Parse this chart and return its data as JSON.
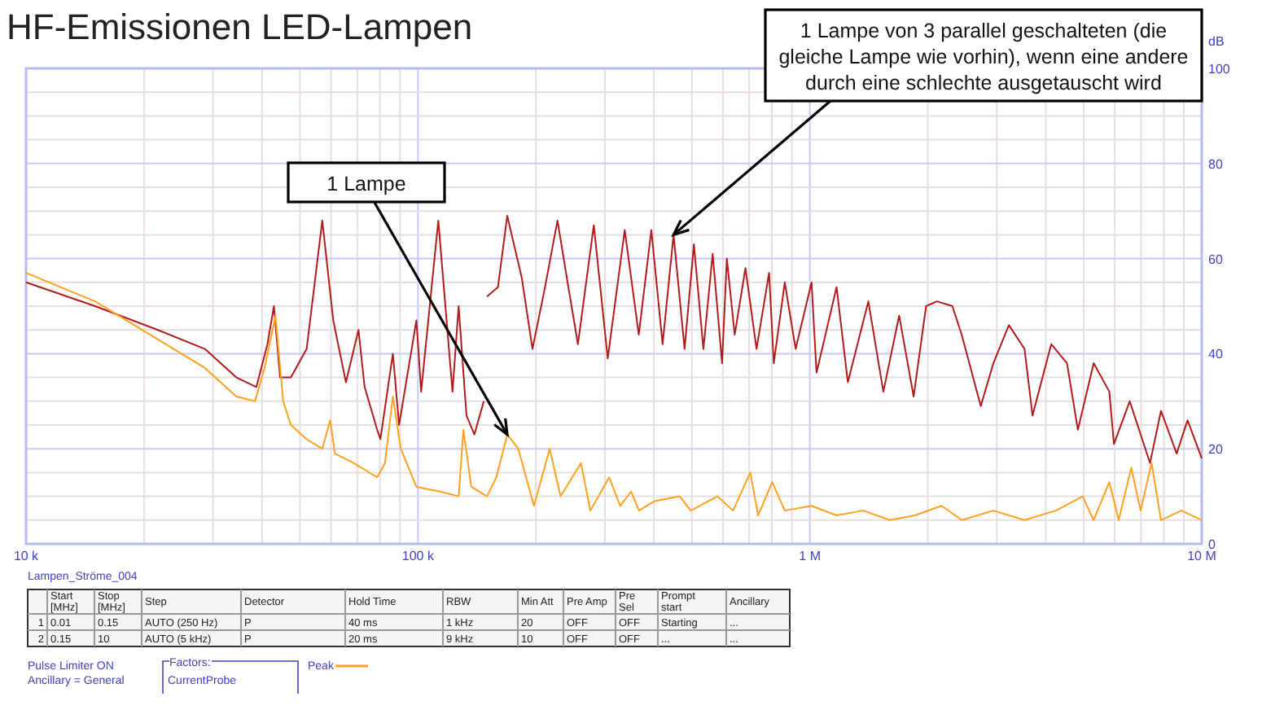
{
  "chart_data": {
    "type": "line",
    "title": "HF-Emissionen LED-Lampen",
    "ylabel": "dB",
    "xlim": [
      10000,
      10000000
    ],
    "log": "x",
    "xticks": [
      {
        "value": 10000,
        "label": "10 k"
      },
      {
        "value": 20000,
        "label": null
      },
      {
        "value": 30000,
        "label": null
      },
      {
        "value": 40000,
        "label": null
      },
      {
        "value": 50000,
        "label": null
      },
      {
        "value": 60000,
        "label": null
      },
      {
        "value": 70000,
        "label": null
      },
      {
        "value": 80000,
        "label": null
      },
      {
        "value": 90000,
        "label": null
      },
      {
        "value": 100000,
        "label": "100 k"
      },
      {
        "value": 200000,
        "label": null
      },
      {
        "value": 300000,
        "label": null
      },
      {
        "value": 400000,
        "label": null
      },
      {
        "value": 500000,
        "label": null
      },
      {
        "value": 600000,
        "label": null
      },
      {
        "value": 700000,
        "label": null
      },
      {
        "value": 800000,
        "label": null
      },
      {
        "value": 900000,
        "label": null
      },
      {
        "value": 1000000,
        "label": "1 M"
      },
      {
        "value": 2000000,
        "label": null
      },
      {
        "value": 3000000,
        "label": null
      },
      {
        "value": 4000000,
        "label": null
      },
      {
        "value": 5000000,
        "label": null
      },
      {
        "value": 6000000,
        "label": null
      },
      {
        "value": 7000000,
        "label": null
      },
      {
        "value": 8000000,
        "label": null
      },
      {
        "value": 9000000,
        "label": null
      },
      {
        "value": 10000000,
        "label": "10 M"
      }
    ],
    "ylim": [
      0,
      100
    ],
    "yticks": [
      0,
      {
        "value": 5,
        "label": null
      },
      {
        "value": 10,
        "label": null
      },
      {
        "value": 15,
        "label": null
      },
      20,
      {
        "value": 25,
        "label": null
      },
      {
        "value": 30,
        "label": null
      },
      {
        "value": 35,
        "label": null
      },
      40,
      {
        "value": 45,
        "label": null
      },
      {
        "value": 50,
        "label": null
      },
      {
        "value": 55,
        "label": null
      },
      60,
      {
        "value": 65,
        "label": null
      },
      {
        "value": 70,
        "label": null
      },
      {
        "value": 75,
        "label": null
      },
      80,
      {
        "value": 85,
        "label": null
      },
      {
        "value": 90,
        "label": null
      },
      {
        "value": 95,
        "label": null
      },
      100
    ],
    "grid": true,
    "legend": "bottom",
    "marker": "none",
    "line_style": "solid",
    "series": [
      {
        "color": "#b01c1c",
        "x": [
          10000,
          15000,
          21700,
          28600,
          34400,
          38700,
          41300,
          42900,
          44500,
          47400,
          52000,
          57000,
          60800,
          65500,
          70500,
          73100,
          78700,
          80200,
          86300,
          89500,
          99100,
          101900,
          112700,
          122500,
          127000,
          133000,
          139300,
          147200,
          149000,
          150000,
          160000,
          169000,
          184000,
          196000,
          211000,
          227000,
          242000,
          256000,
          281000,
          305000,
          337000,
          366000,
          394000,
          421000,
          449000,
          479000,
          506000,
          535000,
          565000,
          597000,
          614000,
          643000,
          685000,
          731000,
          787000,
          809000,
          863000,
          920000,
          1010000,
          1040000,
          1170000,
          1250000,
          1410000,
          1540000,
          1690000,
          1840000,
          1980000,
          2110000,
          2310000,
          2440000,
          2730000,
          2940000,
          3220000,
          3530000,
          3700000,
          4130000,
          4530000,
          4830000,
          5300000,
          5810000,
          5970000,
          6550000,
          7380000,
          7870000,
          8630000,
          9200000,
          10000000
        ],
        "values": [
          55,
          50,
          45,
          41,
          35,
          33,
          42,
          50,
          35,
          35,
          41,
          68,
          47,
          34,
          45,
          33,
          24,
          22,
          40,
          25,
          47,
          32,
          68,
          32,
          50,
          27,
          23,
          30,
          null,
          52,
          54,
          69,
          56,
          41,
          54,
          68,
          54,
          42,
          67,
          39,
          66,
          44,
          66,
          42,
          65,
          41,
          63,
          41,
          61,
          38,
          60,
          44,
          58,
          41,
          57,
          38,
          55,
          41,
          55,
          36,
          54,
          34,
          51,
          32,
          48,
          31,
          50,
          51,
          50,
          44,
          29,
          38,
          46,
          41,
          27,
          42,
          38,
          24,
          38,
          32,
          21,
          30,
          17,
          28,
          19,
          26,
          18
        ]
      },
      {
        "name": "Peak",
        "color": "#ffa020",
        "x": [
          10000,
          15000,
          21700,
          28600,
          34400,
          38400,
          40600,
          43300,
          45300,
          47400,
          52000,
          57000,
          59700,
          61400,
          68500,
          78700,
          82400,
          86300,
          90400,
          99100,
          113800,
          127000,
          130600,
          136800,
          150000,
          158500,
          169000,
          180300,
          197700,
          216800,
          231200,
          260600,
          275400,
          307600,
          328100,
          349900,
          366400,
          401800,
          465600,
          496600,
          580700,
          636800,
          704700,
          738000,
          801700,
          863000,
          1009000,
          1169000,
          1368000,
          1600000,
          1854000,
          2168000,
          2443000,
          2938000,
          3532000,
          4246000,
          4966000,
          5297000,
          5808000,
          6138000,
          6607000,
          6982000,
          7447000,
          7870000,
          8872000,
          10000000
        ],
        "values": [
          57,
          51,
          43,
          37,
          31,
          30,
          37,
          48,
          30,
          25,
          22,
          20,
          26,
          19,
          17,
          14,
          17,
          31,
          20,
          12,
          11,
          10,
          24,
          12,
          10,
          14,
          23,
          20,
          8,
          20,
          10,
          17,
          7,
          14,
          8,
          11,
          7,
          9,
          10,
          7,
          10,
          7,
          15,
          6,
          13,
          7,
          8,
          6,
          7,
          5,
          6,
          8,
          5,
          7,
          5,
          7,
          10,
          5,
          13,
          5,
          16,
          7,
          17,
          5,
          7,
          5
        ]
      }
    ],
    "annotations": [
      {
        "text": "1 Lampe",
        "x": 169000,
        "y": 23
      },
      {
        "text": "1 Lampe von 3 parallel geschalteten (die gleiche Lampe wie vorhin), wenn eine andere durch eine schlechte ausgetauscht wird",
        "x": 449000,
        "y": 65
      },
      "Lampen_Ströme_004",
      "Pulse Limiter ON",
      "Ancillary = General",
      "Factors:",
      "CurrentProbe",
      "Start [MHz]",
      "Stop [MHz]",
      "Step",
      "Detector",
      "Hold Time",
      "RBW",
      "Min Att",
      "Pre Amp",
      "Pre Sel",
      "Prompt start",
      "Ancillary",
      "1",
      "0.01",
      "0.15",
      "AUTO (250 Hz)",
      "P",
      "40 ms",
      "1 kHz",
      "20",
      "OFF",
      "OFF",
      "Starting",
      "...",
      "2",
      "0.15",
      "10",
      "AUTO (5 kHz)",
      "P",
      "20 ms",
      "9 kHz",
      "10",
      "OFF",
      "OFF",
      "...",
      "..."
    ]
  }
}
